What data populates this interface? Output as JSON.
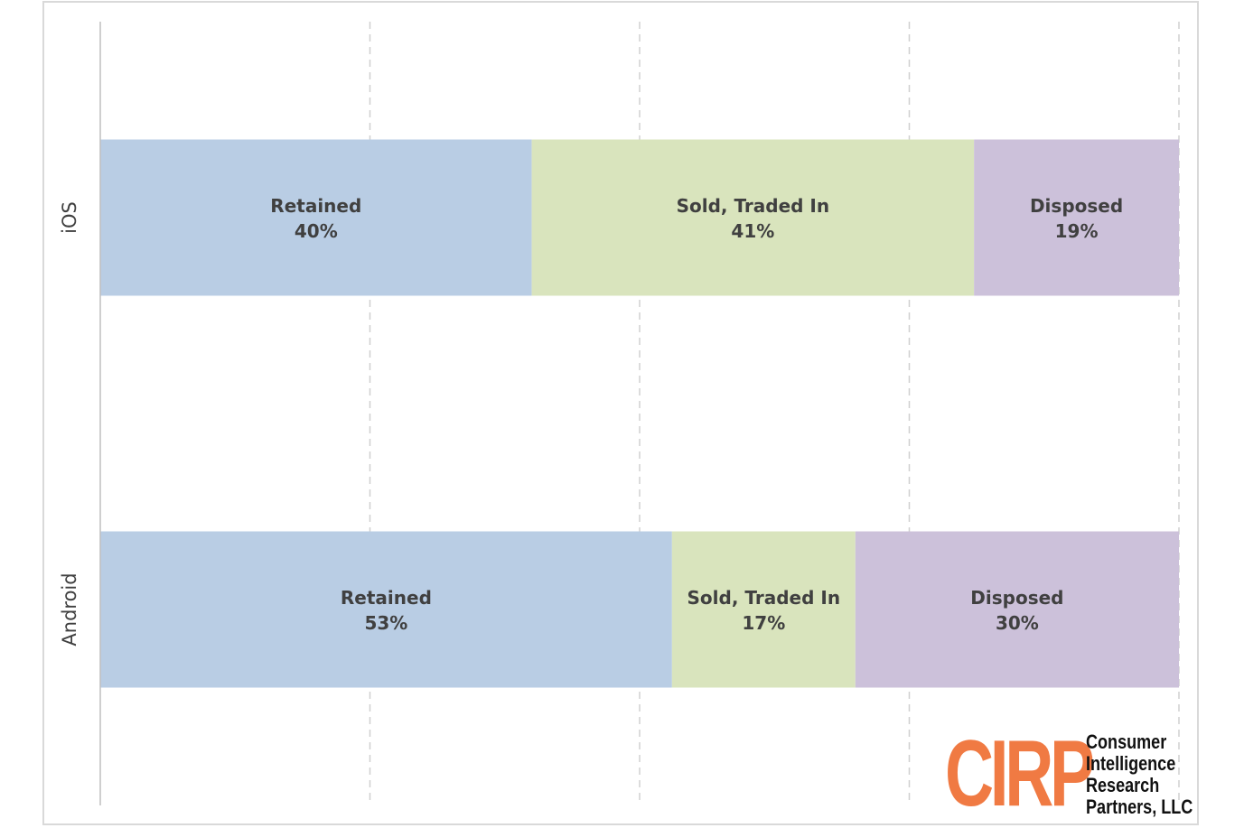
{
  "chart_data": {
    "type": "bar",
    "orientation": "horizontal",
    "stacked": "100%",
    "categories": [
      "iOS",
      "Android"
    ],
    "series": [
      {
        "name": "Retained",
        "values": [
          40,
          53
        ],
        "color": "#b9cde4"
      },
      {
        "name": "Sold, Traded In",
        "values": [
          41,
          17
        ],
        "color": "#d9e4bd"
      },
      {
        "name": "Disposed",
        "values": [
          19,
          30
        ],
        "color": "#ccc1da"
      }
    ],
    "value_format": "percent",
    "xlim": [
      0,
      100
    ],
    "grid": "vertical dashed",
    "legend": "none",
    "title": "",
    "xlabel": "",
    "ylabel": ""
  },
  "logo": {
    "mark": "CIRP",
    "lines": [
      "Consumer",
      "Intelligence",
      "Research",
      "Partners, LLC"
    ],
    "color": "#f07a43"
  }
}
